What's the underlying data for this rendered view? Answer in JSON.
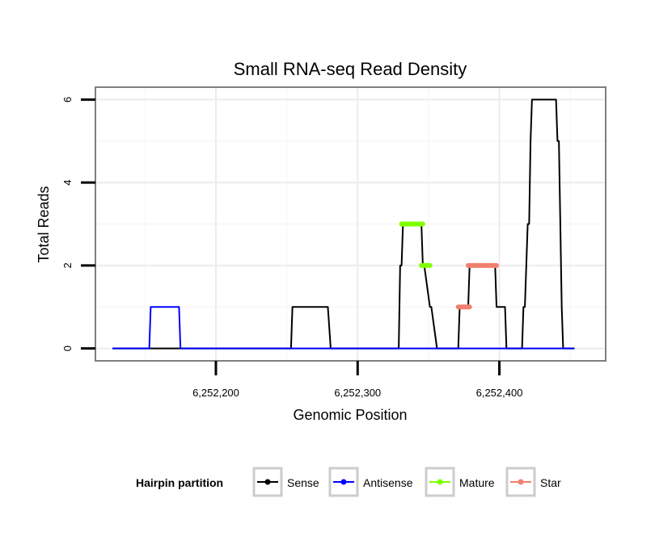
{
  "chart_data": {
    "type": "line",
    "title": "Small RNA-seq Read Density",
    "xlabel": "Genomic Position",
    "ylabel": "Total Reads",
    "xlim": [
      6252115,
      6252475
    ],
    "ylim": [
      -0.3,
      6.3
    ],
    "x_ticks": [
      6252200,
      6252300,
      6252400
    ],
    "x_tick_labels": [
      "6,252,200",
      "6,252,300",
      "6,252,400"
    ],
    "y_ticks": [
      0,
      2,
      4,
      6
    ],
    "y_tick_labels": [
      "0",
      "2",
      "4",
      "6"
    ],
    "grid": true,
    "legend": {
      "title": "Hairpin partition",
      "position": "bottom",
      "entries": [
        "Sense",
        "Antisense",
        "Mature",
        "Star"
      ]
    },
    "series": [
      {
        "name": "Sense",
        "color": "#000000",
        "x": [
          6252127,
          6252253,
          6252254,
          6252279,
          6252281,
          6252329,
          6252330,
          6252331,
          6252332,
          6252345,
          6252346,
          6252347,
          6252351,
          6252352,
          6252356,
          6252357,
          6252371,
          6252372,
          6252375,
          6252378,
          6252379,
          6252397,
          6252398,
          6252404,
          6252405,
          6252416,
          6252417,
          6252418,
          6252420,
          6252421,
          6252422,
          6252423,
          6252440,
          6252441,
          6252442,
          6252443,
          6252444,
          6252445,
          6252453
        ],
        "y": [
          0,
          0,
          1,
          1,
          0,
          0,
          2,
          2,
          3,
          3,
          2,
          2,
          1,
          1,
          0,
          0,
          0,
          1,
          1,
          1,
          2,
          2,
          1,
          1,
          0,
          0,
          1,
          1,
          3,
          3,
          5,
          6,
          6,
          5,
          5,
          3,
          1,
          0,
          0
        ]
      },
      {
        "name": "Antisense",
        "color": "#0000ff",
        "x": [
          6252127,
          6252153,
          6252154,
          6252174,
          6252175,
          6252453
        ],
        "y": [
          0,
          0,
          1,
          1,
          0,
          0
        ]
      }
    ],
    "segments": [
      {
        "name": "Mature",
        "color": "#7fff00",
        "x0": 6252331,
        "x1": 6252346,
        "y": 3
      },
      {
        "name": "Mature",
        "color": "#7fff00",
        "x0": 6252345,
        "x1": 6252351,
        "y": 2
      },
      {
        "name": "Star",
        "color": "#f08070",
        "x0": 6252371,
        "x1": 6252379,
        "y": 1
      },
      {
        "name": "Star",
        "color": "#f08070",
        "x0": 6252378,
        "x1": 6252398,
        "y": 2
      }
    ],
    "legend_colors": {
      "Sense": "#000000",
      "Antisense": "#0000ff",
      "Mature": "#7fff00",
      "Star": "#f08070"
    }
  }
}
